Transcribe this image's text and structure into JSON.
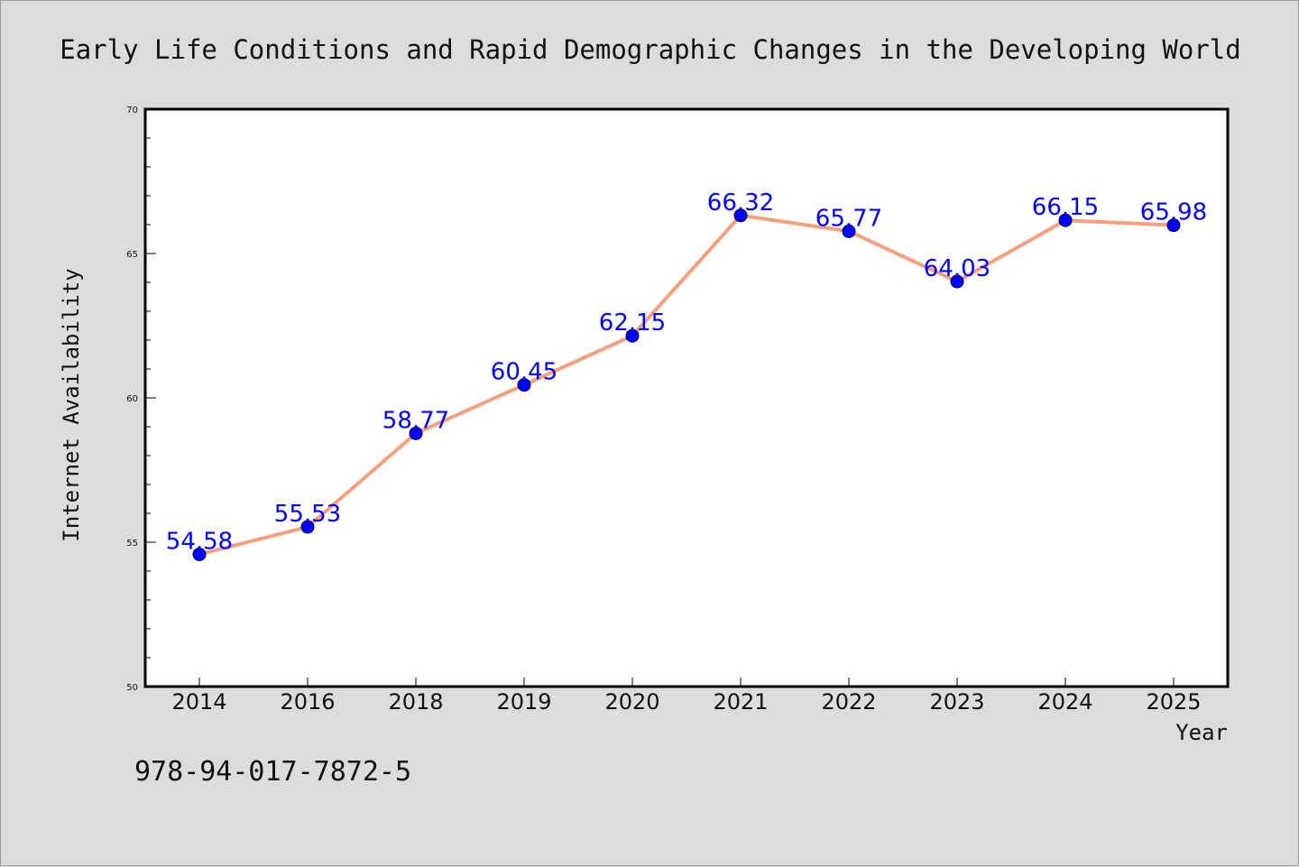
{
  "chart_data": {
    "type": "line",
    "title": "Early Life Conditions and Rapid Demographic Changes in the Developing World",
    "xlabel": "Year",
    "ylabel": "Internet Availability",
    "categories": [
      "2014",
      "2016",
      "2018",
      "2019",
      "2020",
      "2021",
      "2022",
      "2023",
      "2024",
      "2025"
    ],
    "series": [
      {
        "values": [
          54.58,
          55.53,
          58.77,
          60.45,
          62.15,
          66.32,
          65.77,
          64.03,
          66.15,
          65.98
        ],
        "labels": [
          "54.58",
          "55.53",
          "58.77",
          "60.45",
          "62.15",
          "66.32",
          "65.77",
          "64.03",
          "66.15",
          "65.98"
        ],
        "line_color": "#f4a07e",
        "marker_color": "#0000ff",
        "label_color": "#0000ff"
      }
    ],
    "ylim": [
      50,
      70
    ],
    "yticks": [
      50,
      55,
      60,
      65,
      70
    ],
    "ytick_labels": [
      "50",
      "55",
      "60",
      "65",
      "70"
    ],
    "grid": false,
    "legend": "none",
    "plot_background": "#ffffff"
  },
  "footer": {
    "isbn": "978-94-017-7872-5"
  }
}
